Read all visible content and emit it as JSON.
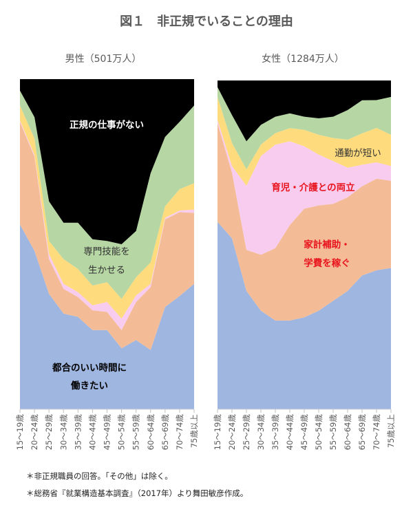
{
  "title": "図１　非正規でいることの理由",
  "footnotes": [
    "＊非正規職員の回答。「その他」は除く。",
    "＊総務省『就業構造基本調査』（2017年）より舞田敏彦作成。"
  ],
  "colors": {
    "blue": "#9EB6E0",
    "orange": "#F4BC96",
    "pink": "#F8CCEE",
    "yellow": "#FEDB7D",
    "green": "#B6D6A4",
    "black": "#000000",
    "label_red": "#E8141E"
  },
  "chart_data": [
    {
      "type": "area",
      "stacked": "100%",
      "title": "男性（501万人）",
      "categories": [
        "15～19歳",
        "20～24歳",
        "25～29歳",
        "30～34歳",
        "35～39歳",
        "40～44歳",
        "45～49歳",
        "50～54歳",
        "55～59歳",
        "60～64歳",
        "65～69歳",
        "70～74歳",
        "75歳以上"
      ],
      "ylim": [
        0,
        100
      ],
      "grid": false,
      "series": [
        {
          "name": "都合のいい時間に働きたい",
          "color": "blue",
          "values": [
            56,
            48,
            35,
            29,
            28,
            24,
            24,
            18.5,
            21,
            18,
            31,
            34.5,
            38
          ]
        },
        {
          "name": "家計補助・学費を稼ぐ",
          "color": "orange",
          "values": [
            31,
            28.5,
            10.5,
            7.5,
            6,
            6,
            5.5,
            5.5,
            11.5,
            19,
            26.5,
            25.5,
            21.5
          ]
        },
        {
          "name": "育児・介護との両立",
          "color": "pink",
          "values": [
            0.5,
            0.5,
            1.5,
            1.5,
            1.5,
            1.5,
            3,
            3.5,
            2,
            1,
            0.5,
            0.5,
            1
          ]
        },
        {
          "name": "通勤が短い",
          "color": "yellow",
          "values": [
            4.5,
            5,
            4,
            7.5,
            7,
            6,
            6,
            6,
            5.5,
            6.5,
            3.5,
            6.5,
            8
          ]
        },
        {
          "name": "専門技能を生かせる",
          "color": "green",
          "values": [
            4.5,
            6.5,
            12,
            11,
            14,
            14,
            12.5,
            16.5,
            14,
            27,
            21,
            20.5,
            23.5
          ]
        },
        {
          "name": "正規の仕事がない",
          "color": "black",
          "values": [
            3.5,
            11.5,
            37,
            43.5,
            43.5,
            48.5,
            49,
            50,
            46,
            28.5,
            17.5,
            13,
            8
          ]
        }
      ],
      "annotations": [
        {
          "lines": [
            "正規の仕事がない"
          ],
          "series": "black",
          "text_color": "#FFFFFF",
          "bold": true
        },
        {
          "lines": [
            "専門技能を",
            "生かせる"
          ],
          "series": "green",
          "text_color": "#333333",
          "bold": false
        },
        {
          "lines": [
            "都合のいい時間に",
            "働きたい"
          ],
          "series": "blue",
          "text_color": "#000000",
          "bold": true
        }
      ]
    },
    {
      "type": "area",
      "stacked": "100%",
      "title": "女性（1284万人）",
      "categories": [
        "15～19歳",
        "20～24歳",
        "25～29歳",
        "30～34歳",
        "35～39歳",
        "40～44歳",
        "45～49歳",
        "50～54歳",
        "55～59歳",
        "60～64歳",
        "65～69歳",
        "70～74歳",
        "75歳以上"
      ],
      "ylim": [
        0,
        100
      ],
      "grid": false,
      "series": [
        {
          "name": "都合のいい時間に働きたい",
          "color": "blue",
          "values": [
            57,
            52,
            36,
            30,
            27,
            27,
            28,
            30,
            33,
            36,
            40.5,
            42.5,
            43
          ]
        },
        {
          "name": "家計補助・学費を稼ぐ",
          "color": "orange",
          "values": [
            30,
            20,
            12.5,
            17,
            22,
            29,
            33,
            32,
            29.5,
            28.5,
            27,
            28,
            26.5
          ]
        },
        {
          "name": "育児・介護との両立",
          "color": "pink",
          "values": [
            1,
            2,
            19.5,
            30,
            31.5,
            25.5,
            19,
            15.5,
            13,
            9,
            6.5,
            5,
            4.5
          ]
        },
        {
          "name": "通勤が短い",
          "color": "yellow",
          "values": [
            7,
            7,
            5,
            3.5,
            3.5,
            4,
            5,
            6,
            7,
            8.5,
            9.5,
            10.5,
            9.5
          ]
        },
        {
          "name": "専門技能を生かせる",
          "color": "green",
          "values": [
            3,
            8.5,
            8.5,
            6,
            5,
            4.5,
            4,
            5,
            6.5,
            9,
            10,
            8.5,
            11.5
          ]
        },
        {
          "name": "正規の仕事がない",
          "color": "black",
          "values": [
            2,
            10.5,
            18.5,
            13.5,
            11,
            10,
            11,
            11.5,
            11,
            9,
            6,
            6,
            5
          ]
        }
      ],
      "annotations": [
        {
          "lines": [
            "通勤が短い"
          ],
          "series": "yellow",
          "text_color": "#333333",
          "bold": false
        },
        {
          "lines": [
            "育児・介護との両立"
          ],
          "series": "pink",
          "text_color": "#E8141E",
          "bold": true
        },
        {
          "lines": [
            "家計補助・",
            "学費を稼ぐ"
          ],
          "series": "orange",
          "text_color": "#E8141E",
          "bold": true
        }
      ]
    }
  ]
}
